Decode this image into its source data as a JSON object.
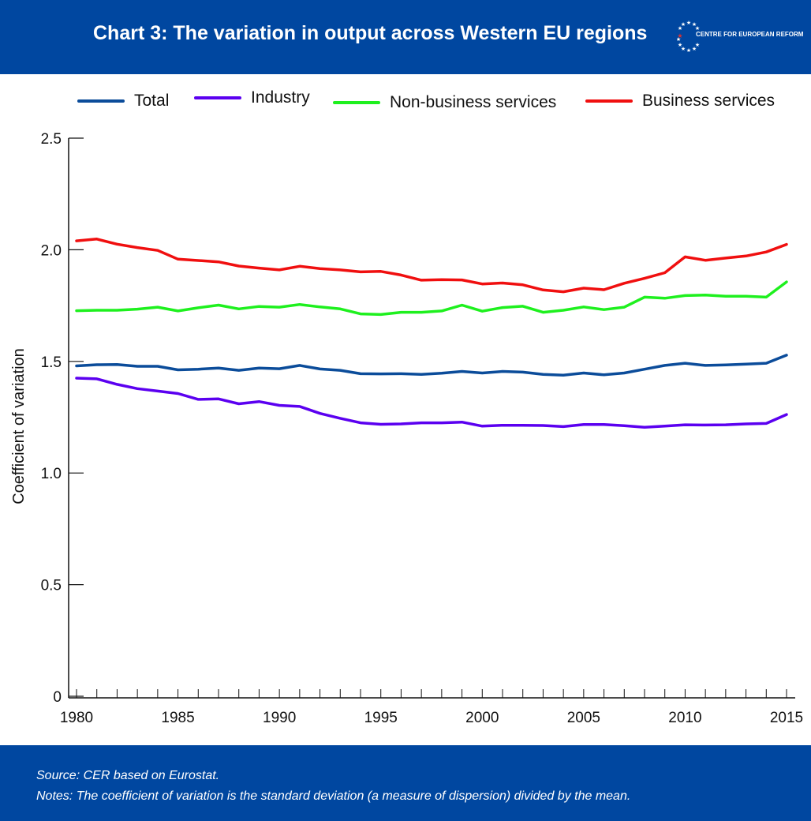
{
  "header": {
    "title": "Chart 3: The variation in output across Western EU regions",
    "logo_text": "CENTRE FOR EUROPEAN REFORM"
  },
  "colors": {
    "header_bg": "#0047A0",
    "total": "#0B4C9A",
    "industry": "#5B00F0",
    "non_business": "#1EF01E",
    "business": "#F00F0F"
  },
  "legend": [
    {
      "label": "Total",
      "color": "#0B4C9A"
    },
    {
      "label": "Industry",
      "color": "#5B00F0"
    },
    {
      "label": "Non-business services",
      "color": "#1EF01E"
    },
    {
      "label": "Business services",
      "color": "#F00F0F"
    }
  ],
  "chart_data": {
    "type": "line",
    "title": "Chart 3: The variation in output across Western EU regions",
    "xlabel": "",
    "ylabel": "Coefficient of variation",
    "ylim": [
      0,
      2.5
    ],
    "xlim": [
      1980,
      2015
    ],
    "yticks": [
      "0",
      "0.5",
      "1.0",
      "1.5",
      "2.0",
      "2.5"
    ],
    "xticks": [
      "1980",
      "1985",
      "1990",
      "1995",
      "2000",
      "2005",
      "2010",
      "2015"
    ],
    "x": [
      1980,
      1981,
      1982,
      1983,
      1984,
      1985,
      1986,
      1987,
      1988,
      1989,
      1990,
      1991,
      1992,
      1993,
      1994,
      1995,
      1996,
      1997,
      1998,
      1999,
      2000,
      2001,
      2002,
      2003,
      2004,
      2005,
      2006,
      2007,
      2008,
      2009,
      2010,
      2011,
      2012,
      2013,
      2014,
      2015
    ],
    "series": [
      {
        "name": "Total",
        "color": "#0B4C9A",
        "values": [
          1.48,
          1.485,
          1.486,
          1.478,
          1.478,
          1.462,
          1.465,
          1.47,
          1.46,
          1.47,
          1.467,
          1.482,
          1.466,
          1.46,
          1.445,
          1.444,
          1.445,
          1.442,
          1.447,
          1.455,
          1.448,
          1.455,
          1.452,
          1.442,
          1.438,
          1.448,
          1.44,
          1.448,
          1.465,
          1.482,
          1.492,
          1.482,
          1.484,
          1.488,
          1.492,
          1.528
        ]
      },
      {
        "name": "Industry",
        "color": "#5B00F0",
        "values": [
          1.425,
          1.422,
          1.397,
          1.378,
          1.367,
          1.356,
          1.33,
          1.332,
          1.31,
          1.32,
          1.303,
          1.298,
          1.267,
          1.245,
          1.225,
          1.218,
          1.22,
          1.225,
          1.225,
          1.228,
          1.21,
          1.214,
          1.214,
          1.213,
          1.208,
          1.217,
          1.217,
          1.212,
          1.205,
          1.21,
          1.216,
          1.215,
          1.216,
          1.22,
          1.222,
          1.262
        ]
      },
      {
        "name": "Non-business services",
        "color": "#1EF01E",
        "values": [
          1.727,
          1.729,
          1.729,
          1.734,
          1.743,
          1.726,
          1.74,
          1.752,
          1.735,
          1.746,
          1.743,
          1.755,
          1.744,
          1.735,
          1.713,
          1.71,
          1.72,
          1.72,
          1.726,
          1.752,
          1.725,
          1.741,
          1.747,
          1.72,
          1.729,
          1.744,
          1.732,
          1.743,
          1.788,
          1.783,
          1.795,
          1.797,
          1.792,
          1.792,
          1.788,
          1.856
        ]
      },
      {
        "name": "Business services",
        "color": "#F00F0F",
        "values": [
          2.04,
          2.048,
          2.025,
          2.01,
          1.997,
          1.958,
          1.952,
          1.946,
          1.927,
          1.918,
          1.91,
          1.926,
          1.916,
          1.91,
          1.901,
          1.903,
          1.887,
          1.864,
          1.866,
          1.865,
          1.847,
          1.851,
          1.843,
          1.82,
          1.812,
          1.828,
          1.821,
          1.85,
          1.872,
          1.897,
          1.968,
          1.953,
          1.963,
          1.972,
          1.99,
          2.024
        ]
      }
    ]
  },
  "footer": {
    "source": "Source:  CER based on Eurostat.",
    "notes": "Notes: The coefficient of variation is the standard deviation (a measure of dispersion) divided by the mean."
  }
}
